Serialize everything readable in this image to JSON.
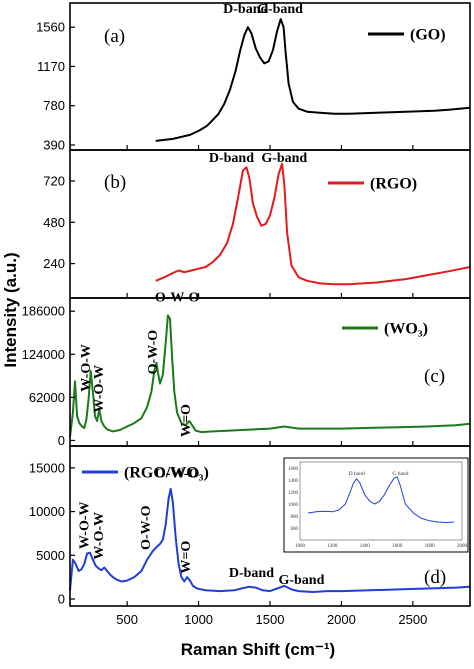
{
  "chart_data": {
    "type": "line",
    "xlabel": "Raman Shift (cm⁻¹)",
    "ylabel": "Intensity (a.u.)",
    "xlim": [
      100,
      2900
    ],
    "xticks": [
      500,
      1000,
      1500,
      2000,
      2500
    ],
    "xtick_labels": [
      "500",
      "1000",
      "1500",
      "2000",
      "2500"
    ],
    "colors": {
      "GO": "#000000",
      "RGO": "#e41a1c",
      "WO3": "#1a7a1a",
      "RGO_WO3": "#1f3fd6"
    },
    "panels": [
      {
        "letter": "(a)",
        "legend": "(GO)",
        "color": "#000000",
        "ylim": [
          340,
          1800
        ],
        "yticks": [
          390,
          780,
          1170,
          1560
        ],
        "ytick_labels": [
          "390",
          "780",
          "1170",
          "1560"
        ],
        "annotations": [
          {
            "text": "D-band",
            "x": 1330,
            "y": 1700
          },
          {
            "text": "G-band",
            "x": 1570,
            "y": 1700
          }
        ],
        "series": [
          {
            "name": "GO",
            "x": [
              700,
              760,
              820,
              880,
              940,
              1000,
              1060,
              1100,
              1140,
              1180,
              1220,
              1260,
              1290,
              1320,
              1345,
              1370,
              1400,
              1430,
              1460,
              1490,
              1520,
              1550,
              1575,
              1595,
              1610,
              1630,
              1660,
              1700,
              1760,
              1850,
              1950,
              2050,
              2150,
              2250,
              2350,
              2450,
              2550,
              2650,
              2750,
              2900
            ],
            "y": [
              430,
              440,
              450,
              470,
              490,
              530,
              580,
              640,
              700,
              800,
              940,
              1130,
              1320,
              1480,
              1560,
              1500,
              1350,
              1260,
              1200,
              1220,
              1330,
              1520,
              1640,
              1560,
              1300,
              1000,
              820,
              750,
              720,
              710,
              700,
              700,
              705,
              710,
              715,
              720,
              725,
              730,
              740,
              760
            ]
          }
        ]
      },
      {
        "letter": "(b)",
        "legend": "(RGO)",
        "color": "#e41a1c",
        "ylim": [
          40,
          900
        ],
        "yticks": [
          240,
          480,
          720
        ],
        "ytick_labels": [
          "240",
          "480",
          "720"
        ],
        "annotations": [
          {
            "text": "D-band",
            "x": 1230,
            "y": 830
          },
          {
            "text": "G-band",
            "x": 1600,
            "y": 830
          }
        ],
        "series": [
          {
            "name": "RGO",
            "x": [
              700,
              760,
              820,
              860,
              900,
              950,
              1000,
              1050,
              1100,
              1150,
              1200,
              1240,
              1280,
              1310,
              1335,
              1355,
              1380,
              1410,
              1440,
              1470,
              1500,
              1530,
              1560,
              1585,
              1600,
              1620,
              1650,
              1700,
              1760,
              1850,
              1950,
              2050,
              2150,
              2250,
              2350,
              2450,
              2550,
              2650,
              2750,
              2900
            ],
            "y": [
              140,
              160,
              185,
              200,
              190,
              200,
              210,
              220,
              250,
              290,
              360,
              470,
              640,
              780,
              800,
              740,
              590,
              510,
              460,
              470,
              520,
              620,
              760,
              820,
              700,
              420,
              230,
              160,
              140,
              125,
              120,
              120,
              125,
              130,
              140,
              150,
              165,
              180,
              195,
              220
            ]
          }
        ]
      },
      {
        "letter": "(c)",
        "legend": "(WO₃)",
        "color": "#1a7a1a",
        "ylim": [
          -8000,
          205000
        ],
        "yticks": [
          0,
          62000,
          124000,
          186000
        ],
        "ytick_labels": [
          "0",
          "62000",
          "124000",
          "186000"
        ],
        "annotations": [
          {
            "text": "W-O-W",
            "x": 240,
            "y": 70000,
            "rotate": true
          },
          {
            "text": "W-O-W",
            "x": 330,
            "y": 40000,
            "rotate": true
          },
          {
            "text": "O-W-O",
            "x": 710,
            "y": 95000,
            "rotate": true
          },
          {
            "text": "O-W-O",
            "x": 850,
            "y": 200000
          },
          {
            "text": "W=O",
            "x": 940,
            "y": 5000,
            "rotate": true
          }
        ],
        "series": [
          {
            "name": "WO3",
            "x": [
              100,
              120,
              135,
              150,
              165,
              185,
              200,
              215,
              230,
              245,
              260,
              275,
              290,
              305,
              320,
              340,
              360,
              400,
              450,
              500,
              550,
              600,
              640,
              670,
              690,
              705,
              715,
              730,
              750,
              770,
              785,
              800,
              815,
              830,
              850,
              880,
              910,
              935,
              955,
              980,
              1020,
              1100,
              1200,
              1300,
              1400,
              1500,
              1600,
              1700,
              1800,
              1900,
              2000,
              2200,
              2400,
              2600,
              2800,
              2900
            ],
            "y": [
              5000,
              40000,
              85000,
              35000,
              25000,
              20000,
              18000,
              30000,
              60000,
              100000,
              70000,
              35000,
              28000,
              45000,
              28000,
              20000,
              16000,
              13000,
              15000,
              20000,
              25000,
              32000,
              48000,
              70000,
              100000,
              112000,
              98000,
              82000,
              95000,
              140000,
              180000,
              175000,
              120000,
              70000,
              40000,
              25000,
              22000,
              28000,
              22000,
              14000,
              12000,
              13000,
              14000,
              15000,
              16000,
              17000,
              20000,
              17000,
              17000,
              17000,
              17000,
              18000,
              19000,
              20000,
              22000,
              24000
            ]
          }
        ]
      },
      {
        "letter": "(d)",
        "legend": "(RGO/WO₃)",
        "color": "#1f3fd6",
        "ylim": [
          -800,
          17500
        ],
        "yticks": [
          0,
          5000,
          10000,
          15000
        ],
        "ytick_labels": [
          "0",
          "5000",
          "10000",
          "15000"
        ],
        "annotations": [
          {
            "text": "W-O-W",
            "x": 230,
            "y": 5700,
            "rotate": true
          },
          {
            "text": "W-O-W",
            "x": 330,
            "y": 4500,
            "rotate": true
          },
          {
            "text": "O-W-O",
            "x": 660,
            "y": 5600,
            "rotate": true
          },
          {
            "text": "O-W-O",
            "x": 850,
            "y": 13900
          },
          {
            "text": "W=O",
            "x": 940,
            "y": 2900,
            "rotate": true
          },
          {
            "text": "D-band",
            "x": 1370,
            "y": 2500
          },
          {
            "text": "G-band",
            "x": 1720,
            "y": 1700
          }
        ],
        "series": [
          {
            "name": "RGO/WO3",
            "x": [
              100,
              120,
              140,
              160,
              180,
              200,
              220,
              240,
              260,
              280,
              300,
              320,
              340,
              360,
              380,
              400,
              430,
              460,
              500,
              550,
              600,
              640,
              680,
              710,
              730,
              750,
              770,
              790,
              805,
              820,
              840,
              860,
              880,
              900,
              920,
              940,
              960,
              990,
              1050,
              1150,
              1250,
              1300,
              1350,
              1400,
              1450,
              1500,
              1550,
              1600,
              1650,
              1700,
              1800,
              1900,
              2000,
              2200,
              2400,
              2600,
              2800,
              2900
            ],
            "y": [
              1000,
              4500,
              4000,
              3200,
              3400,
              4000,
              5200,
              5300,
              4500,
              3800,
              3500,
              3300,
              3600,
              3200,
              2800,
              2500,
              2200,
              2000,
              2100,
              2500,
              3200,
              4500,
              5500,
              6000,
              6300,
              6800,
              8500,
              11500,
              12600,
              11000,
              7000,
              4000,
              2500,
              2000,
              2500,
              2100,
              1500,
              1200,
              1000,
              900,
              1000,
              1200,
              1400,
              1300,
              1000,
              900,
              1200,
              1500,
              1100,
              900,
              800,
              900,
              900,
              1000,
              1100,
              1200,
              1300,
              1400
            ]
          }
        ]
      }
    ],
    "inset": {
      "panel": 3,
      "xlim": [
        1000,
        2000
      ],
      "ylim": [
        400,
        1700
      ],
      "xticks": [
        1000,
        1200,
        1400,
        1600,
        1800,
        2000
      ],
      "xtick_labels": [
        "1000",
        "1200",
        "1400",
        "1600",
        "1800",
        "2000"
      ],
      "yticks": [
        600,
        800,
        1000,
        1200,
        1400,
        1600
      ],
      "ytick_labels": [
        "600",
        "800",
        "1000",
        "1200",
        "1400",
        "1600"
      ],
      "annotations": [
        {
          "text": "D band",
          "x": 1350,
          "y": 1480
        },
        {
          "text": "G band",
          "x": 1620,
          "y": 1480
        }
      ],
      "series": [
        {
          "name": "RGO/WO3 inset",
          "x": [
            1050,
            1100,
            1150,
            1200,
            1240,
            1280,
            1310,
            1330,
            1350,
            1370,
            1400,
            1430,
            1460,
            1490,
            1520,
            1550,
            1580,
            1600,
            1620,
            1650,
            1700,
            1750,
            1800,
            1850,
            1900,
            1950
          ],
          "y": [
            850,
            870,
            880,
            870,
            900,
            1000,
            1200,
            1350,
            1420,
            1350,
            1150,
            1050,
            1000,
            1040,
            1150,
            1300,
            1430,
            1450,
            1300,
            1000,
            850,
            760,
            720,
            700,
            690,
            700
          ]
        }
      ]
    }
  }
}
